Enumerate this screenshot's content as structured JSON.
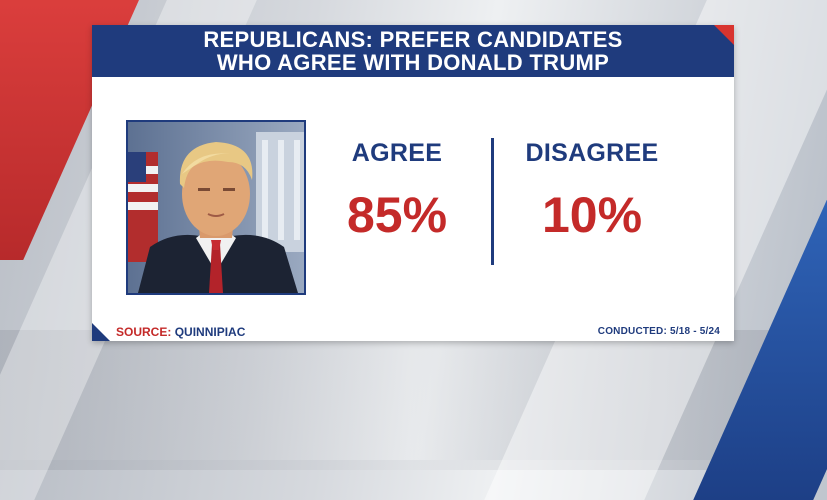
{
  "title": {
    "line1": "REPUBLICANS: PREFER CANDIDATES",
    "line2": "WHO AGREE WITH DONALD TRUMP"
  },
  "stats": [
    {
      "label": "AGREE",
      "value": "85%"
    },
    {
      "label": "DISAGREE",
      "value": "10%"
    }
  ],
  "portrait": {
    "icon": "portrait-photo"
  },
  "footer": {
    "source_label": "SOURCE:",
    "source_name": "QUINNIPIAC",
    "conducted_label": "CONDUCTED:",
    "conducted_dates": "5/18 - 5/24"
  },
  "colors": {
    "navy": "#1f3b7d",
    "red": "#c42a29"
  }
}
